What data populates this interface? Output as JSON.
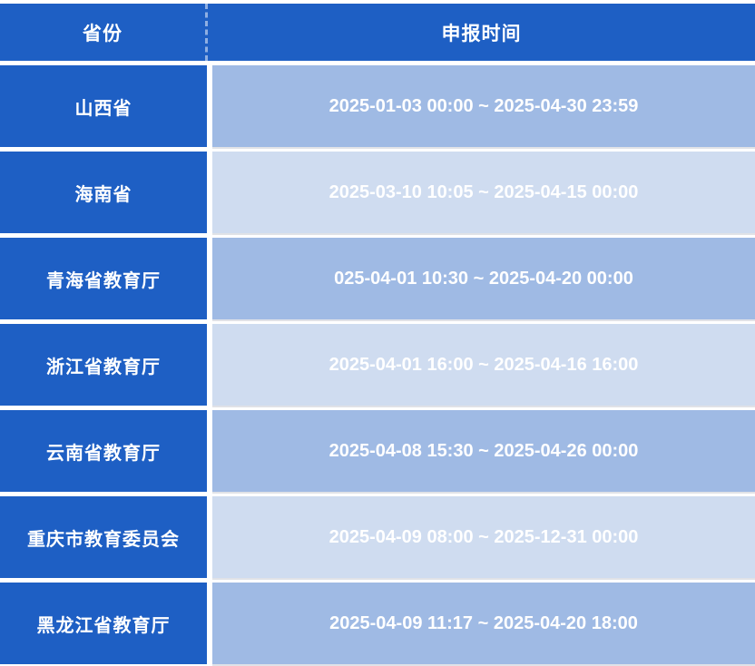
{
  "table": {
    "columns": [
      {
        "key": "province",
        "label": "省份"
      },
      {
        "key": "time",
        "label": "申报时间"
      }
    ],
    "rows": [
      {
        "province": "山西省",
        "time": "2025-01-03 00:00 ~ 2025-04-30 23:59"
      },
      {
        "province": "海南省",
        "time": "2025-03-10 10:05 ~ 2025-04-15 00:00"
      },
      {
        "province": "青海省教育厅",
        "time": "025-04-01 10:30 ~ 2025-04-20 00:00"
      },
      {
        "province": "浙江省教育厅",
        "time": "2025-04-01 16:00 ~ 2025-04-16 16:00"
      },
      {
        "province": "云南省教育厅",
        "time": "2025-04-08 15:30 ~ 2025-04-26 00:00"
      },
      {
        "province": "重庆市教育委员会",
        "time": "2025-04-09 08:00 ~ 2025-12-31 00:00"
      },
      {
        "province": "黑龙江省教育厅",
        "time": "2025-04-09 11:17 ~ 2025-04-20 18:00"
      }
    ],
    "colors": {
      "header_bg": "#1E5FC4",
      "province_bg": "#1E5FC4",
      "time_bg_odd": "#9FBAE4",
      "time_bg_even": "#CFDCF0",
      "text": "#FFFFFF"
    }
  }
}
